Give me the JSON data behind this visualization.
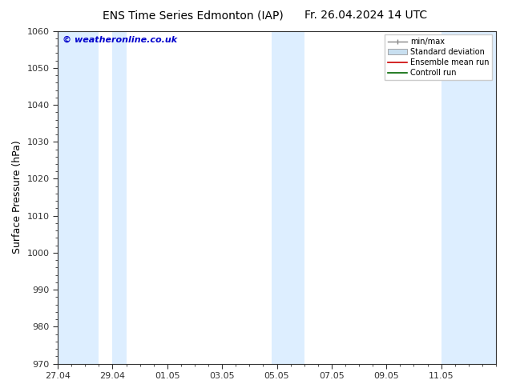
{
  "title_left": "ENS Time Series Edmonton (IAP)",
  "title_right": "Fr. 26.04.2024 14 UTC",
  "ylabel": "Surface Pressure (hPa)",
  "watermark": "© weatheronline.co.uk",
  "watermark_color": "#0000cc",
  "ylim": [
    970,
    1060
  ],
  "yticks": [
    970,
    980,
    990,
    1000,
    1010,
    1020,
    1030,
    1040,
    1050,
    1060
  ],
  "xtick_labels": [
    "27.04",
    "29.04",
    "01.05",
    "03.05",
    "05.05",
    "07.05",
    "09.05",
    "11.05"
  ],
  "xlim_days": [
    0,
    16
  ],
  "x_tick_positions": [
    0,
    2,
    4,
    6,
    8,
    10,
    12,
    14
  ],
  "bg_color": "#ffffff",
  "plot_bg_color": "#ffffff",
  "shaded_bands": [
    {
      "x_start": 0.0,
      "x_end": 1.5,
      "color": "#ddeeff"
    },
    {
      "x_start": 2.0,
      "x_end": 2.5,
      "color": "#ddeeff"
    },
    {
      "x_start": 7.8,
      "x_end": 9.0,
      "color": "#ddeeff"
    },
    {
      "x_start": 14.0,
      "x_end": 16.0,
      "color": "#ddeeff"
    }
  ],
  "legend_labels": [
    "min/max",
    "Standard deviation",
    "Ensemble mean run",
    "Controll run"
  ],
  "spine_color": "#333333",
  "tick_color": "#333333",
  "font_color": "#000000",
  "title_fontsize": 10,
  "label_fontsize": 9,
  "tick_fontsize": 8
}
